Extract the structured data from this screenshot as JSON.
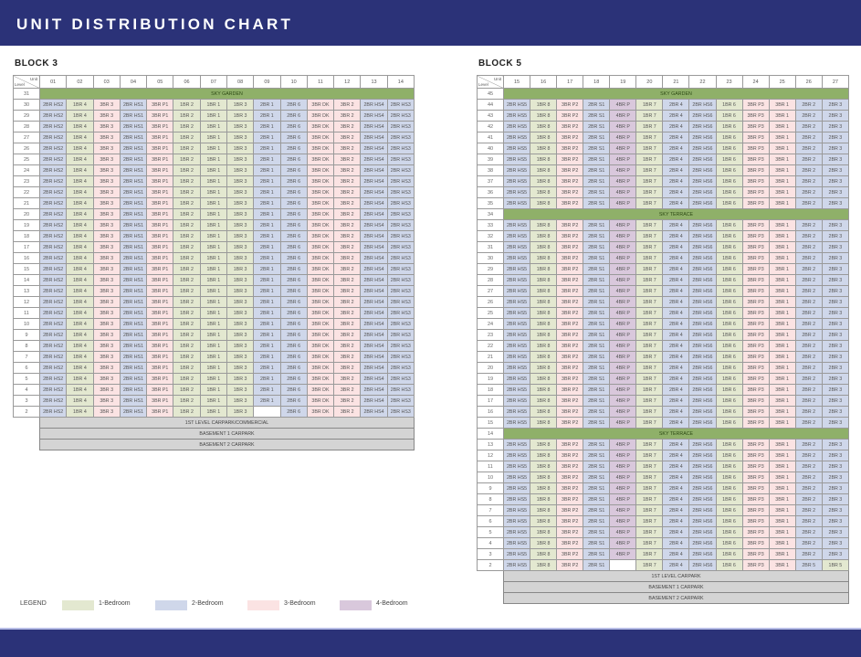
{
  "title": "UNIT DISTRIBUTION CHART",
  "corner": {
    "unit": "Unit",
    "level": "Level"
  },
  "blocks": [
    {
      "name": "BLOCK 3",
      "units": [
        "01",
        "02",
        "03",
        "04",
        "05",
        "06",
        "07",
        "08",
        "09",
        "10",
        "11",
        "12",
        "13",
        "14"
      ],
      "typical": [
        "2BR HS2",
        "1BR 4",
        "3BR 3",
        "2BR HS1",
        "3BR P1",
        "1BR 2",
        "1BR 1",
        "1BR 3",
        "2BR 1",
        "2BR 6",
        "3BR DK",
        "3BR 2",
        "2BR HS4",
        "2BR HS3"
      ],
      "levels": [
        {
          "level": "31",
          "special": "SKY GARDEN"
        },
        "30",
        "29",
        "28",
        "27",
        "26",
        "25",
        "24",
        "23",
        "22",
        "21",
        "20",
        "19",
        "18",
        "17",
        "16",
        "15",
        "14",
        "13",
        "12",
        "11",
        "10",
        "9",
        "8",
        "7",
        "6",
        "5",
        "4",
        "3",
        {
          "level": "2",
          "cells": [
            "2BR HS2",
            "1BR 4",
            "3BR 3",
            "2BR HS1",
            "3BR P1",
            "1BR 2",
            "1BR 1",
            "1BR 3",
            "",
            "2BR 6",
            "3BR DK",
            "3BR 2",
            "2BR HS4",
            "2BR HS3"
          ]
        }
      ],
      "below": [
        "1ST LEVEL CARPARK/COMMERCIAL",
        "BASEMENT 1 CARPARK",
        "BASEMENT 2 CARPARK"
      ]
    },
    {
      "name": "BLOCK 5",
      "units": [
        "15",
        "16",
        "17",
        "18",
        "19",
        "20",
        "21",
        "22",
        "23",
        "24",
        "25",
        "26",
        "27"
      ],
      "typical": [
        "2BR HS5",
        "1BR 8",
        "3BR P2",
        "2BR S1",
        "4BR P",
        "1BR 7",
        "2BR 4",
        "2BR HS6",
        "1BR 6",
        "3BR P3",
        "3BR 1",
        "2BR 2",
        "2BR 3"
      ],
      "levels": [
        {
          "level": "45",
          "special": "SKY GARDEN"
        },
        "44",
        "43",
        "42",
        "41",
        "40",
        "39",
        "38",
        "37",
        "36",
        "35",
        {
          "level": "34",
          "special": "SKY TERRACE"
        },
        "33",
        "32",
        "31",
        "30",
        "29",
        "28",
        "27",
        "26",
        "25",
        "24",
        "23",
        "22",
        "21",
        "20",
        "19",
        "18",
        "17",
        "16",
        "15",
        {
          "level": "14",
          "special": "SKY TERRACE"
        },
        "13",
        "12",
        "11",
        "10",
        "9",
        "8",
        "7",
        "6",
        "5",
        "4",
        "3",
        {
          "level": "2",
          "cells": [
            "2BR HS5",
            "1BR 8",
            "3BR P2",
            "2BR S1",
            "",
            "1BR 7",
            "2BR 4",
            "2BR HS6",
            "1BR 6",
            "3BR P3",
            "3BR 1",
            "2BR 5",
            "1BR 5"
          ]
        }
      ],
      "below": [
        "1ST LEVEL CARPARK",
        "BASEMENT 1 CARPARK",
        "BASEMENT 2 CARPARK"
      ]
    }
  ],
  "legend": {
    "label": "LEGEND",
    "items": [
      {
        "label": "1-Bedroom",
        "color": "#e3e8d0"
      },
      {
        "label": "2-Bedroom",
        "color": "#cfd7ea"
      },
      {
        "label": "3-Bedroom",
        "color": "#fbe3e3"
      },
      {
        "label": "4-Bedroom",
        "color": "#d9c8dc"
      }
    ]
  }
}
